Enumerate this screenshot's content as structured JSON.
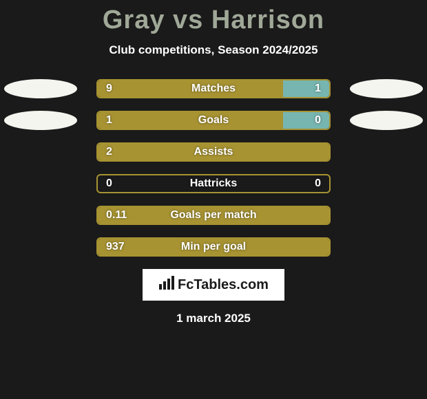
{
  "background_color": "#1a1a1a",
  "title": {
    "text": "Gray vs Harrison",
    "color": "#a0a898",
    "font_size": 38,
    "font_weight": 900
  },
  "subtitle": {
    "text": "Club competitions, Season 2024/2025",
    "color": "#ffffff",
    "font_size": 17,
    "font_weight": 700
  },
  "bar_style": {
    "track_width": 340,
    "track_height": 28,
    "border_color": "#a79332",
    "border_width": 2,
    "border_radius": 6,
    "left_color": "#a79332",
    "right_color": "#77b5b0",
    "label_color": "#ffffff",
    "label_font_size": 16,
    "label_font_weight": 700
  },
  "ellipse": {
    "width": 106,
    "height": 28,
    "color": "#f5f5f0"
  },
  "stats": [
    {
      "name": "Matches",
      "left_value": "9",
      "right_value": "1",
      "left_pct": 80,
      "right_pct": 20,
      "show_left_ellipse": true,
      "show_right_ellipse": true,
      "show_right_value": true
    },
    {
      "name": "Goals",
      "left_value": "1",
      "right_value": "0",
      "left_pct": 80,
      "right_pct": 20,
      "show_left_ellipse": true,
      "show_right_ellipse": true,
      "show_right_value": true
    },
    {
      "name": "Assists",
      "left_value": "2",
      "right_value": "",
      "left_pct": 100,
      "right_pct": 0,
      "show_left_ellipse": false,
      "show_right_ellipse": false,
      "show_right_value": false
    },
    {
      "name": "Hattricks",
      "left_value": "0",
      "right_value": "0",
      "left_pct": 0,
      "right_pct": 0,
      "show_left_ellipse": false,
      "show_right_ellipse": false,
      "show_right_value": true
    },
    {
      "name": "Goals per match",
      "left_value": "0.11",
      "right_value": "",
      "left_pct": 100,
      "right_pct": 0,
      "show_left_ellipse": false,
      "show_right_ellipse": false,
      "show_right_value": false
    },
    {
      "name": "Min per goal",
      "left_value": "937",
      "right_value": "",
      "left_pct": 100,
      "right_pct": 0,
      "show_left_ellipse": false,
      "show_right_ellipse": false,
      "show_right_value": false
    }
  ],
  "logo": {
    "text": "FcTables.com",
    "box_color": "#ffffff",
    "text_color": "#1a1a1a",
    "font_size": 20
  },
  "date": {
    "text": "1 march 2025",
    "color": "#ffffff",
    "font_size": 17,
    "font_weight": 700
  }
}
